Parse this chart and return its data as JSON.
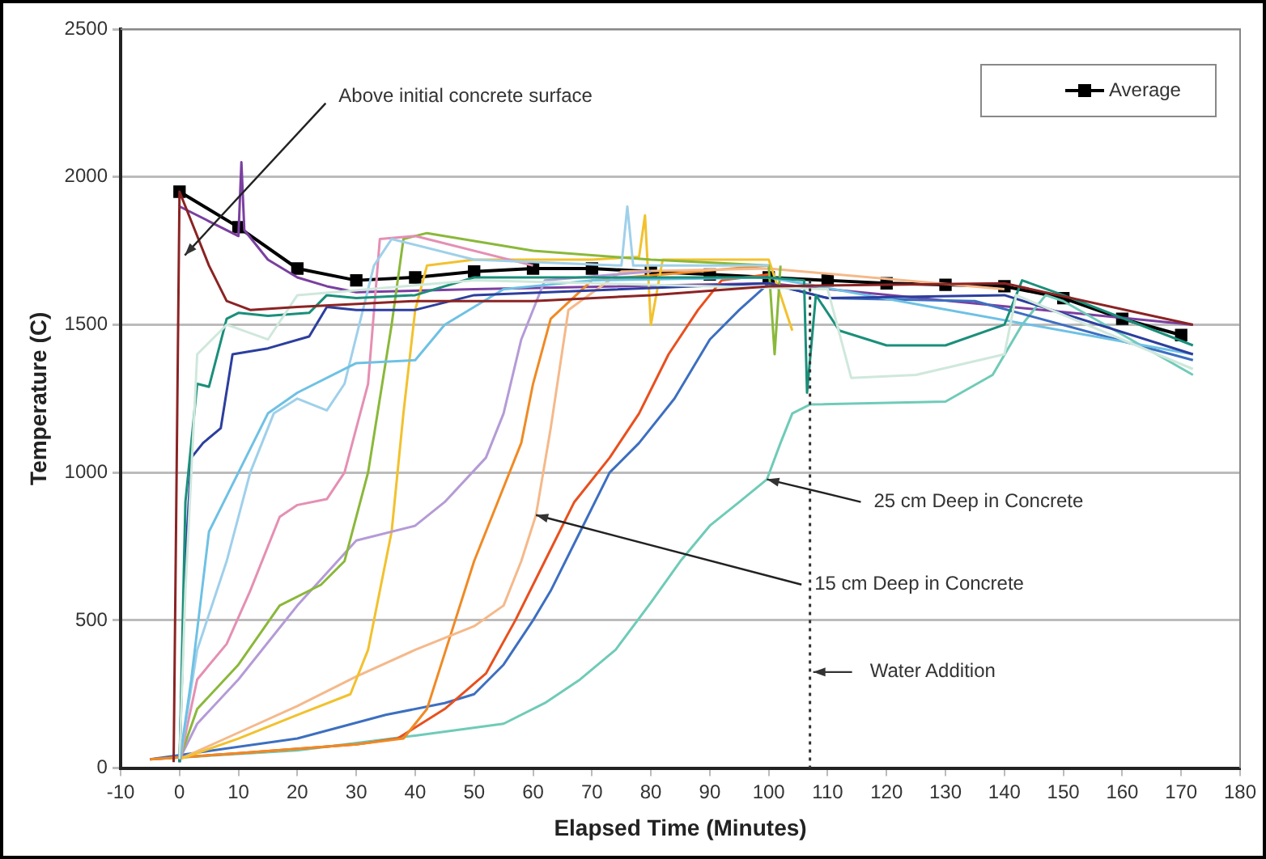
{
  "chart_data": {
    "type": "line",
    "xlabel": "Elapsed Time (Minutes)",
    "ylabel": "Temperature (C)",
    "xlim": [
      -10,
      180
    ],
    "xticks": [
      -10,
      0,
      10,
      20,
      30,
      40,
      50,
      60,
      70,
      80,
      90,
      100,
      110,
      120,
      130,
      140,
      150,
      160,
      170,
      180
    ],
    "ylim": [
      0,
      2500
    ],
    "yticks": [
      0,
      500,
      1000,
      1500,
      2000,
      2500
    ],
    "grid": "y",
    "legend": "top right",
    "marker": "none",
    "line_style": "solid",
    "annotations": [
      {
        "text": "Above initial concrete surface",
        "x": 0.9,
        "y": 1735
      },
      {
        "text": "25 cm Deep in Concrete",
        "x": 99.7,
        "y": 977
      },
      {
        "text": "15 cm Deep in Concrete",
        "x": 60.5,
        "y": 856
      }
    ],
    "ref_lines": [
      {
        "axis": "x",
        "value": 107,
        "label": "Water Addition",
        "color": "#333333",
        "line_style": "dotted"
      }
    ],
    "series": [
      {
        "color": "#8b2323",
        "x": [
          -1,
          0,
          2,
          5,
          8,
          12,
          20,
          40,
          60,
          80,
          100,
          140,
          172
        ],
        "values": [
          20,
          1950,
          1850,
          1700,
          1580,
          1550,
          1560,
          1580,
          1580,
          1600,
          1630,
          1640,
          1500
        ]
      },
      {
        "color": "#cfe8dc",
        "x": [
          0,
          1,
          3,
          8,
          15,
          20,
          50,
          110,
          114,
          125,
          140,
          142,
          172
        ],
        "values": [
          30,
          600,
          1400,
          1500,
          1450,
          1600,
          1650,
          1620,
          1320,
          1330,
          1400,
          1600,
          1350
        ]
      },
      {
        "color": "#1a8f7a",
        "x": [
          0,
          1,
          3,
          5,
          8,
          10,
          15,
          22,
          25,
          30,
          40,
          50,
          100,
          106,
          106.5,
          108,
          112,
          120,
          130,
          140,
          143,
          150,
          172
        ],
        "values": [
          20,
          900,
          1300,
          1290,
          1520,
          1540,
          1530,
          1540,
          1600,
          1590,
          1600,
          1660,
          1660,
          1650,
          1270,
          1600,
          1480,
          1430,
          1430,
          1500,
          1650,
          1600,
          1430
        ]
      },
      {
        "color": "#2c3e9e",
        "x": [
          0,
          1,
          2,
          4,
          7,
          9,
          15,
          22,
          25,
          30,
          40,
          50,
          100,
          110,
          140,
          172
        ],
        "values": [
          20,
          700,
          1050,
          1100,
          1150,
          1400,
          1420,
          1460,
          1560,
          1550,
          1550,
          1600,
          1640,
          1590,
          1600,
          1400
        ]
      },
      {
        "color": "#6ec1e4",
        "x": [
          0,
          2,
          5,
          10,
          15,
          20,
          30,
          40,
          45,
          55,
          70,
          100,
          172
        ],
        "values": [
          20,
          300,
          800,
          1000,
          1200,
          1270,
          1370,
          1380,
          1500,
          1620,
          1650,
          1660,
          1400
        ]
      },
      {
        "color": "#9fd0ea",
        "x": [
          0,
          3,
          8,
          12,
          16,
          20,
          25,
          28,
          33,
          36,
          50,
          75,
          76,
          77,
          100
        ],
        "values": [
          20,
          400,
          700,
          1000,
          1200,
          1250,
          1210,
          1300,
          1700,
          1790,
          1720,
          1700,
          1900,
          1700,
          1700
        ]
      },
      {
        "color": "#e58fb3",
        "x": [
          0,
          3,
          8,
          12,
          17,
          20,
          25,
          28,
          32,
          34,
          40,
          60
        ],
        "values": [
          20,
          300,
          420,
          600,
          850,
          890,
          910,
          1000,
          1300,
          1790,
          1800,
          1700
        ]
      },
      {
        "color": "#8ab83a",
        "x": [
          0,
          3,
          10,
          17,
          24,
          28,
          32,
          36,
          38,
          42,
          60,
          80,
          100,
          101,
          102
        ],
        "values": [
          30,
          200,
          350,
          550,
          620,
          700,
          1000,
          1500,
          1790,
          1810,
          1750,
          1720,
          1700,
          1400,
          1700
        ]
      },
      {
        "color": "#b49bd6",
        "x": [
          0,
          3,
          10,
          20,
          30,
          40,
          45,
          52,
          55,
          58,
          62,
          80
        ],
        "values": [
          30,
          150,
          300,
          550,
          770,
          820,
          900,
          1050,
          1200,
          1450,
          1650,
          1680
        ]
      },
      {
        "color": "#f2c12e",
        "x": [
          0,
          10,
          20,
          29,
          32,
          36,
          38,
          40,
          42,
          50,
          70,
          78,
          79,
          80,
          82,
          100,
          104
        ],
        "values": [
          30,
          100,
          180,
          250,
          400,
          800,
          1200,
          1550,
          1700,
          1720,
          1720,
          1730,
          1870,
          1500,
          1720,
          1720,
          1480
        ]
      },
      {
        "color": "#f5b98a",
        "x": [
          0,
          10,
          20,
          30,
          40,
          50,
          55,
          58,
          60.5,
          63,
          66,
          75,
          100,
          140
        ],
        "values": [
          30,
          120,
          210,
          310,
          400,
          480,
          550,
          700,
          856,
          1150,
          1550,
          1680,
          1690,
          1620
        ]
      },
      {
        "color": "#f08a24",
        "x": [
          -5,
          10,
          30,
          38,
          42,
          46,
          50,
          54,
          58,
          60,
          63,
          70,
          100
        ],
        "values": [
          30,
          50,
          80,
          100,
          200,
          450,
          700,
          900,
          1100,
          1300,
          1520,
          1650,
          1700
        ]
      },
      {
        "color": "#e8501e",
        "x": [
          -5,
          10,
          30,
          37,
          45,
          52,
          57,
          62,
          67,
          73,
          78,
          83,
          88,
          92,
          100
        ],
        "values": [
          30,
          50,
          80,
          100,
          200,
          320,
          500,
          700,
          900,
          1050,
          1200,
          1400,
          1550,
          1650,
          1670
        ]
      },
      {
        "color": "#3d6fc0",
        "x": [
          -5,
          20,
          35,
          45,
          50,
          55,
          60,
          63,
          68,
          73,
          78,
          84,
          87,
          90,
          95,
          100,
          110,
          135,
          172
        ],
        "values": [
          30,
          100,
          180,
          220,
          250,
          350,
          500,
          600,
          800,
          1000,
          1100,
          1250,
          1350,
          1450,
          1550,
          1640,
          1590,
          1580,
          1380
        ]
      },
      {
        "color": "#6fcbb8",
        "x": [
          -5,
          20,
          40,
          55,
          62,
          68,
          74,
          80,
          85,
          90,
          95,
          99.7,
          102,
          104,
          107,
          130,
          138,
          143,
          147,
          150,
          172
        ],
        "values": [
          30,
          60,
          110,
          150,
          220,
          300,
          400,
          560,
          700,
          820,
          900,
          977,
          1100,
          1200,
          1230,
          1240,
          1330,
          1500,
          1600,
          1580,
          1330
        ]
      },
      {
        "color": "#7b3fa0",
        "x": [
          0,
          5,
          10,
          10.5,
          11,
          15,
          20,
          25,
          30,
          50,
          100,
          172
        ],
        "values": [
          1900,
          1850,
          1800,
          2050,
          1820,
          1720,
          1660,
          1630,
          1610,
          1620,
          1640,
          1500
        ]
      },
      {
        "name": "Average",
        "color": "#000000",
        "marker": "square",
        "x": [
          0,
          10,
          20,
          30,
          40,
          50,
          60,
          70,
          80,
          90,
          100,
          110,
          120,
          130,
          140,
          150,
          160,
          170
        ],
        "values": [
          1950,
          1830,
          1690,
          1650,
          1660,
          1680,
          1690,
          1690,
          1680,
          1670,
          1660,
          1650,
          1640,
          1635,
          1630,
          1590,
          1520,
          1465
        ]
      }
    ]
  }
}
